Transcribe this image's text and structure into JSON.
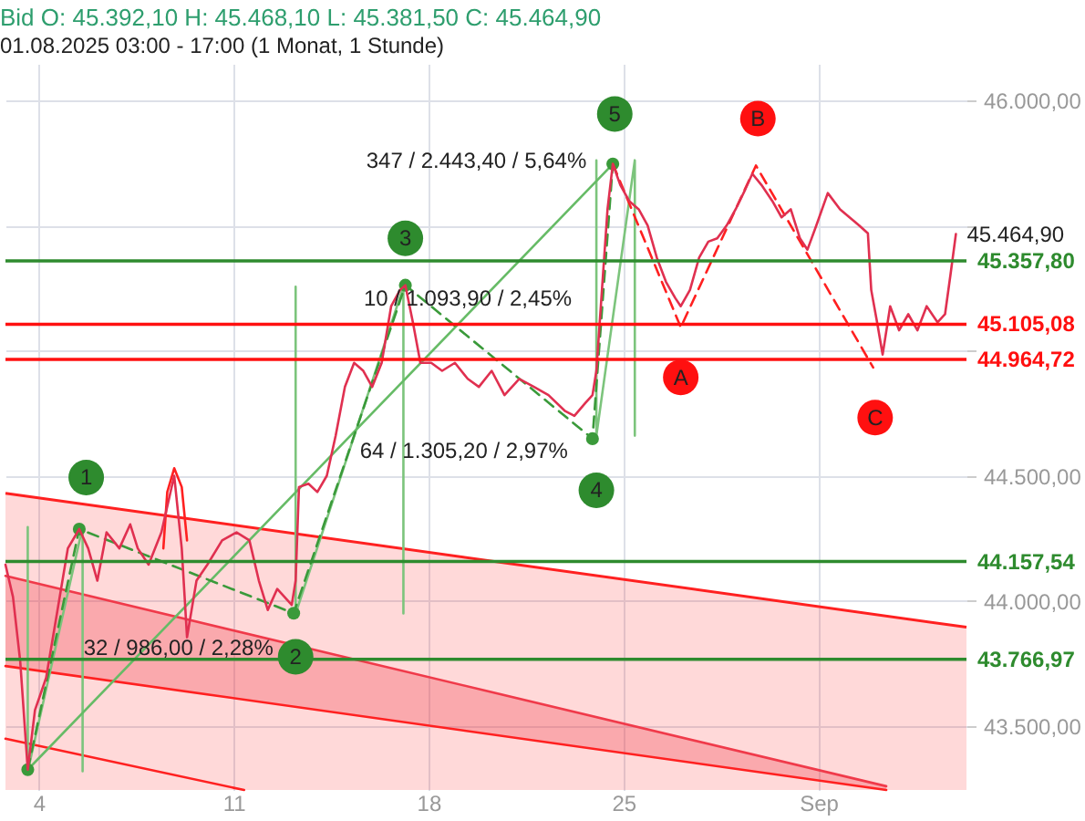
{
  "chart_data": {
    "type": "line",
    "title": "Bid  O: 45.392,10  H: 45.468,10  L: 45.381,50  C: 45.464,90",
    "subtitle": "01.08.2025 03:00 - 17:00  (1 Monat, 1 Stunde)",
    "xlim": [
      2.81,
      37.32
    ],
    "xticks": [
      4,
      11,
      18,
      25,
      {
        "value": 32,
        "label": "Sep"
      }
    ],
    "ylim": [
      43245,
      46145
    ],
    "yticks": [
      {
        "value": 43500,
        "label": "43.500,00"
      },
      {
        "value": 44000,
        "label": "44.000,00"
      },
      {
        "value": 44500,
        "label": "44.500,00"
      },
      {
        "value": 45000,
        "label": null
      },
      {
        "value": 45500,
        "label": null
      },
      {
        "value": 46000,
        "label": "46.000,00"
      }
    ],
    "grid": true,
    "x": [
      2.81,
      3.08,
      3.34,
      3.61,
      3.87,
      4.27,
      4.66,
      5.05,
      5.46,
      5.78,
      6.11,
      6.44,
      6.9,
      7.29,
      7.56,
      7.95,
      8.41,
      8.87,
      9.14,
      9.33,
      9.67,
      10.06,
      10.59,
      11.11,
      11.57,
      11.91,
      12.23,
      12.57,
      12.83,
      13.09,
      13.23,
      13.35,
      13.69,
      14.01,
      14.35,
      14.67,
      15.0,
      15.33,
      15.66,
      15.98,
      16.32,
      16.66,
      16.98,
      17.17,
      17.44,
      17.71,
      18.1,
      18.49,
      18.95,
      19.41,
      19.81,
      20.27,
      20.73,
      21.26,
      21.79,
      22.31,
      22.91,
      23.24,
      23.63,
      23.89,
      24.03,
      24.23,
      24.43,
      24.62,
      24.89,
      25.21,
      25.55,
      25.87,
      26.2,
      26.53,
      26.86,
      27.06,
      27.39,
      27.72,
      28.05,
      28.37,
      28.71,
      29.03,
      29.37,
      29.63,
      29.96,
      30.35,
      30.68,
      31.01,
      31.34,
      31.61,
      31.93,
      32.34,
      32.78,
      33.12,
      33.46,
      33.78,
      33.9,
      34.11,
      34.31,
      34.58,
      34.9,
      35.23,
      35.56,
      35.89,
      36.28,
      36.55,
      36.75,
      36.94
    ],
    "series": [
      {
        "type": "area",
        "color": "#ff2020",
        "x": [
          2.81,
          37.32
        ],
        "values": [
          44430,
          43895
        ]
      },
      {
        "type": "line",
        "color": "#f03a4a",
        "x": [
          2.81,
          20,
          34.44
        ],
        "values": [
          44100,
          43643,
          43260
        ],
        "lower": [
          43740,
          43471,
          43245
        ],
        "upper": [
          44100,
          43643,
          43260
        ]
      },
      {
        "type": "line",
        "color": "#ff2020",
        "x": [
          2.81,
          34.44
        ],
        "values": [
          43740,
          43245
        ]
      },
      {
        "type": "line",
        "color": "#ff2020",
        "x": [
          2.81,
          11.38
        ],
        "values": [
          43450,
          43245
        ]
      },
      {
        "type": "line",
        "color": "#7cc47c",
        "x": [
          3.61,
          3.61,
          5.58,
          5.58,
          3.61
        ],
        "values": [
          43320,
          44295,
          44295,
          43320,
          43320
        ]
      },
      {
        "type": "line",
        "color": "#7cc47c",
        "x": [
          13.23,
          13.23,
          17.1,
          17.1,
          13.23
        ],
        "values": [
          43950,
          45255,
          45255,
          43950,
          43950
        ]
      },
      {
        "type": "line",
        "color": "#7cc47c",
        "x": [
          24.03,
          24.03,
          25.41,
          25.41,
          24.03
        ],
        "values": [
          44660,
          45760,
          45760,
          44660,
          44660
        ]
      },
      {
        "type": "line",
        "color": "#ff2020",
        "x": [
          8.48,
          8.62,
          8.87,
          9.14,
          9.33
        ],
        "values": [
          44210,
          44435,
          44530,
          44455,
          44242
        ]
      },
      {
        "type": "line",
        "color": "#66bb66",
        "x": [
          3.61,
          24.62
        ],
        "values": [
          43326,
          45745
        ]
      },
      {
        "type": "line",
        "color": "#3a9a3a",
        "line_style": "dashed",
        "marker": "circle",
        "x": [
          3.61,
          5.46,
          13.16,
          17.17,
          23.89,
          24.62
        ],
        "values": [
          43326,
          44287,
          43951,
          45261,
          44648,
          45745
        ]
      },
      {
        "type": "line",
        "color": "#ff2020",
        "line_style": "dashed",
        "x": [
          24.62,
          27.06,
          29.76,
          33.97
        ],
        "values": [
          45745,
          45093,
          45739,
          44932
        ]
      },
      {
        "color": "#e03050",
        "values": [
          44145,
          44016,
          43758,
          43326,
          43564,
          43693,
          43951,
          44210,
          44287,
          44210,
          44081,
          44274,
          44210,
          44306,
          44210,
          44145,
          44274,
          44500,
          44210,
          43855,
          44081,
          44145,
          44242,
          44274,
          44242,
          44081,
          43964,
          44048,
          44016,
          43984,
          44081,
          44455,
          44468,
          44435,
          44500,
          44661,
          44855,
          44951,
          44919,
          44855,
          44951,
          45177,
          45242,
          45261,
          45113,
          44951,
          44951,
          44919,
          44951,
          44887,
          44855,
          44919,
          44822,
          44887,
          44855,
          44822,
          44758,
          44739,
          44790,
          44822,
          44919,
          45242,
          45564,
          45745,
          45661,
          45597,
          45564,
          45500,
          45371,
          45274,
          45210,
          45177,
          45242,
          45371,
          45435,
          45448,
          45500,
          45564,
          45642,
          45706,
          45661,
          45597,
          45532,
          45564,
          45448,
          45403,
          45500,
          45629,
          45564,
          45532,
          45500,
          45468,
          45242,
          45113,
          44984,
          45177,
          45081,
          45145,
          45081,
          45177,
          45113,
          45145,
          45306,
          45465
        ]
      },
      {
        "type": "scatter",
        "color": "#2e8b2e",
        "x": [
          5.71,
          13.23,
          17.17,
          24.03,
          24.69
        ],
        "values": [
          44493,
          43777,
          45448,
          44442,
          45945
        ]
      },
      {
        "type": "scatter",
        "color": "#ff1010",
        "x": [
          27.06,
          29.83,
          34.04
        ],
        "values": [
          44893,
          45926,
          44732
        ]
      }
    ],
    "ref_lines": [
      {
        "axis": "y",
        "value": 45105.08,
        "label": "45.105,08",
        "color": "#ff1010"
      },
      {
        "axis": "y",
        "value": 44964.72,
        "label": "44.964,72",
        "color": "#ff1010"
      },
      {
        "axis": "y",
        "value": 45357.8,
        "label": "45.357,80",
        "color": "#2e8b2e"
      },
      {
        "axis": "y",
        "value": 44157.54,
        "label": "44.157,54",
        "color": "#2e8b2e"
      },
      {
        "axis": "y",
        "value": 43766.97,
        "label": "43.766,97",
        "color": "#2e8b2e"
      }
    ],
    "annotations": [
      {
        "text": "45.464,90",
        "x": 36.94,
        "y": 45465
      },
      "347 / 2.443,40 / 5,64%",
      {
        "text": "10 / 1.093,90 / 2,45%",
        "x": 19.41,
        "y": 45210
      },
      "64 / 1.305,20 / 2,97%",
      "32 / 986,00 / 2,28%",
      {
        "text": "1",
        "x": 5.71,
        "y": 44493
      },
      {
        "text": "2",
        "x": 13.23,
        "y": 43777
      },
      {
        "text": "3",
        "x": 17.17,
        "y": 45448
      },
      {
        "text": "4",
        "x": 24.03,
        "y": 44442
      },
      {
        "text": "5",
        "x": 24.69,
        "y": 45945
      },
      {
        "text": "A",
        "x": 27.06,
        "y": 44893
      },
      {
        "text": "B",
        "x": 29.83,
        "y": 45926
      },
      {
        "text": "C",
        "x": 34.04,
        "y": 44732
      }
    ]
  }
}
